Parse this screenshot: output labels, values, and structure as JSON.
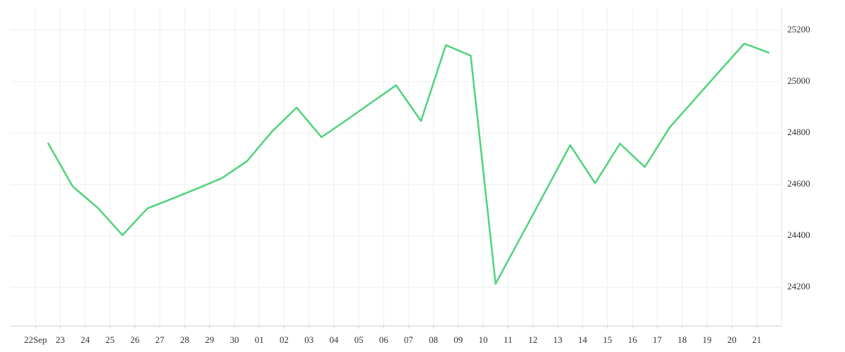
{
  "chart_data": {
    "type": "line",
    "categories": [
      "22Sep",
      "23",
      "24",
      "25",
      "26",
      "27",
      "28",
      "29",
      "30",
      "01",
      "02",
      "03",
      "04",
      "05",
      "06",
      "07",
      "08",
      "09",
      "10",
      "11",
      "12",
      "13",
      "14",
      "15",
      "16",
      "17",
      "18",
      "19",
      "20",
      "21"
    ],
    "series": [
      {
        "color": "#4fd37b",
        "values": [
          24762,
          24592,
          24510,
          24403,
          24507,
          24545,
          24584,
          24625,
          24690,
          24805,
          24899,
          24784,
          24850,
          24918,
          24986,
          24847,
          25142,
          25101,
          24214,
          24393,
          24573,
          24753,
          24605,
          24759,
          24668,
          24822,
          24931,
          25040,
          25148,
          25112
        ]
      }
    ],
    "ylim": [
      24050,
      25290
    ],
    "yticks": [
      24200,
      24400,
      24600,
      24800,
      25000,
      25200
    ],
    "grid": true
  }
}
